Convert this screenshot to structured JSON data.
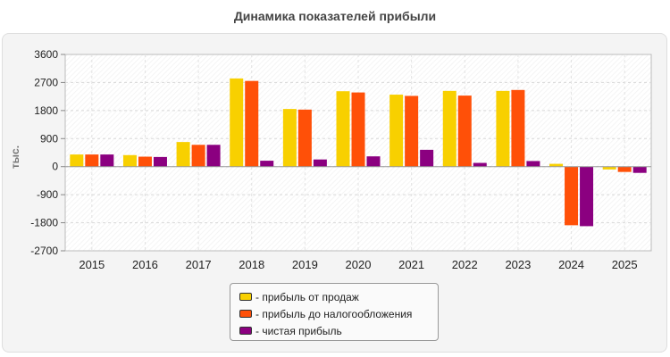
{
  "chart_data": {
    "type": "bar",
    "title": "Динамика показателей прибыли",
    "xlabel": "",
    "ylabel": "тыс.",
    "ylim": [
      -2700,
      3600
    ],
    "yticks": [
      "3600",
      "2700",
      "1800",
      "900",
      "0",
      "-900",
      "-1800",
      "-2700"
    ],
    "categories": [
      "2015",
      "2016",
      "2017",
      "2018",
      "2019",
      "2020",
      "2021",
      "2022",
      "2023",
      "2024",
      "2025"
    ],
    "series": [
      {
        "name": "- прибыль от продаж",
        "color": "#f8d000",
        "values": [
          390,
          370,
          790,
          2830,
          1850,
          2420,
          2310,
          2430,
          2430,
          90,
          -90
        ]
      },
      {
        "name": "- прибыль до налогообложения",
        "color": "#ff5008",
        "values": [
          390,
          320,
          700,
          2750,
          1830,
          2380,
          2270,
          2280,
          2460,
          -1880,
          -170
        ]
      },
      {
        "name": "- чистая прибыль",
        "color": "#8b0080",
        "values": [
          390,
          310,
          700,
          190,
          230,
          330,
          540,
          120,
          180,
          -1910,
          -200
        ]
      }
    ],
    "grid": true,
    "legend_position": "bottom"
  }
}
